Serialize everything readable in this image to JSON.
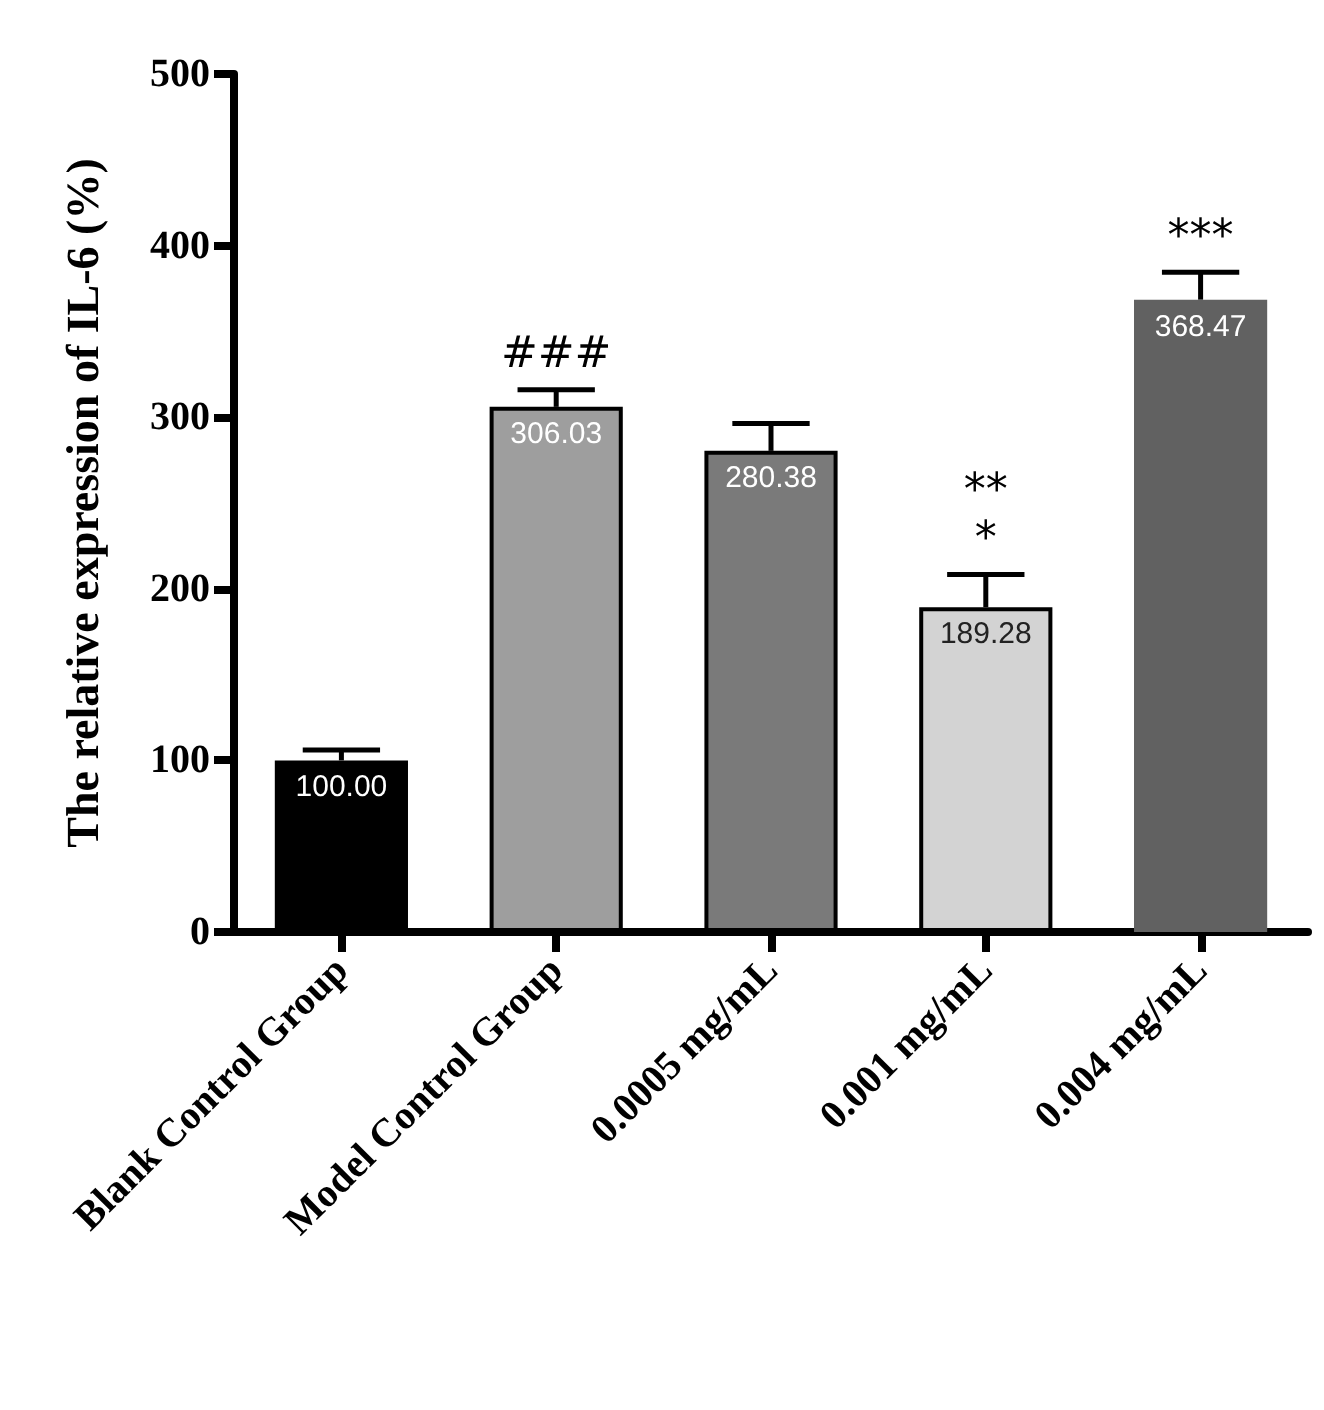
{
  "chart_data": {
    "type": "bar",
    "ylabel": "The relative expression of IL-6 (%)",
    "categories": [
      "Blank Control Group",
      "Model Control Group",
      "0.0005 mg/mL",
      "0.001 mg/mL",
      "0.004 mg/mL"
    ],
    "values": [
      100.0,
      306.03,
      280.38,
      189.28,
      368.47
    ],
    "value_labels": [
      "100.00",
      "306.03",
      "280.38",
      "189.28",
      "368.47"
    ],
    "colors": [
      "#000000",
      "#9e9e9e",
      "#7a7a7a",
      "#d3d3d3",
      "#616161"
    ],
    "errors": [
      6,
      10,
      16,
      19,
      16
    ],
    "ylim": [
      0,
      500
    ],
    "yticks": [
      0,
      100,
      200,
      300,
      400,
      500
    ],
    "grid": false,
    "annotations": [
      {
        "text": "###",
        "x": "Model Control Group",
        "y": 316
      },
      {
        "text": "**\n*",
        "x": "0.001 mg/mL",
        "y": 208
      },
      {
        "text": "***",
        "x": "0.004 mg/mL",
        "y": 384
      }
    ]
  }
}
